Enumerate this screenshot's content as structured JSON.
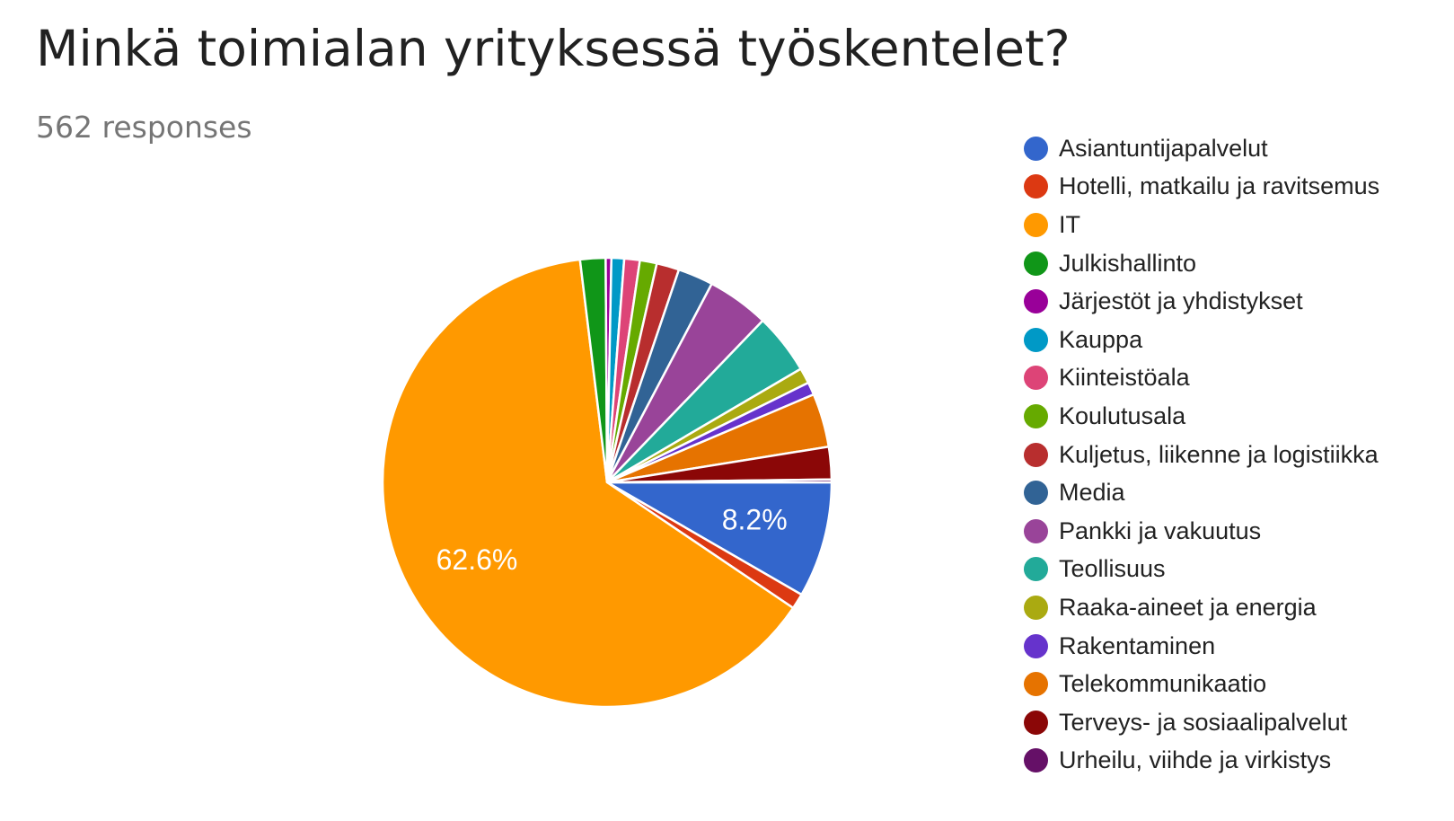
{
  "chart_data": {
    "type": "pie",
    "title": "Minkä toimialan yrityksessä työskentelet?",
    "subtitle": "562 responses",
    "legend_position": "right",
    "slices": [
      {
        "name": "Asiantuntijapalvelut",
        "value": 8.2,
        "color": "#3366cc",
        "label": "8.2%"
      },
      {
        "name": "Hotelli, matkailu ja ravitsemus",
        "value": 1.1,
        "color": "#dc3912",
        "label": ""
      },
      {
        "name": "IT",
        "value": 62.6,
        "color": "#ff9900",
        "label": "62.6%"
      },
      {
        "name": "Julkishallinto",
        "value": 1.8,
        "color": "#109618",
        "label": ""
      },
      {
        "name": "Järjestöt ja yhdistykset",
        "value": 0.4,
        "color": "#990099",
        "label": ""
      },
      {
        "name": "Kauppa",
        "value": 0.9,
        "color": "#0099c6",
        "label": ""
      },
      {
        "name": "Kiinteistöala",
        "value": 1.1,
        "color": "#dd4477",
        "label": ""
      },
      {
        "name": "Koulutusala",
        "value": 1.2,
        "color": "#66aa00",
        "label": ""
      },
      {
        "name": "Kuljetus, liikenne ja logistiikka",
        "value": 1.6,
        "color": "#b82e2e",
        "label": ""
      },
      {
        "name": "Media",
        "value": 2.5,
        "color": "#316395",
        "label": ""
      },
      {
        "name": "Pankki ja vakuutus",
        "value": 4.4,
        "color": "#994499",
        "label": ""
      },
      {
        "name": "Teollisuus",
        "value": 4.3,
        "color": "#22aa99",
        "label": ""
      },
      {
        "name": "Raaka-aineet ja energia",
        "value": 1.1,
        "color": "#aaaa11",
        "label": ""
      },
      {
        "name": "Rakentaminen",
        "value": 0.9,
        "color": "#6633cc",
        "label": ""
      },
      {
        "name": "Telekommunikaatio",
        "value": 3.8,
        "color": "#e67300",
        "label": ""
      },
      {
        "name": "Terveys- ja sosiaalipalvelut",
        "value": 2.3,
        "color": "#8b0707",
        "label": ""
      },
      {
        "name": "Urheilu, viihde ja virkistys",
        "value": 0.2,
        "color": "#651067",
        "label": ""
      }
    ]
  }
}
